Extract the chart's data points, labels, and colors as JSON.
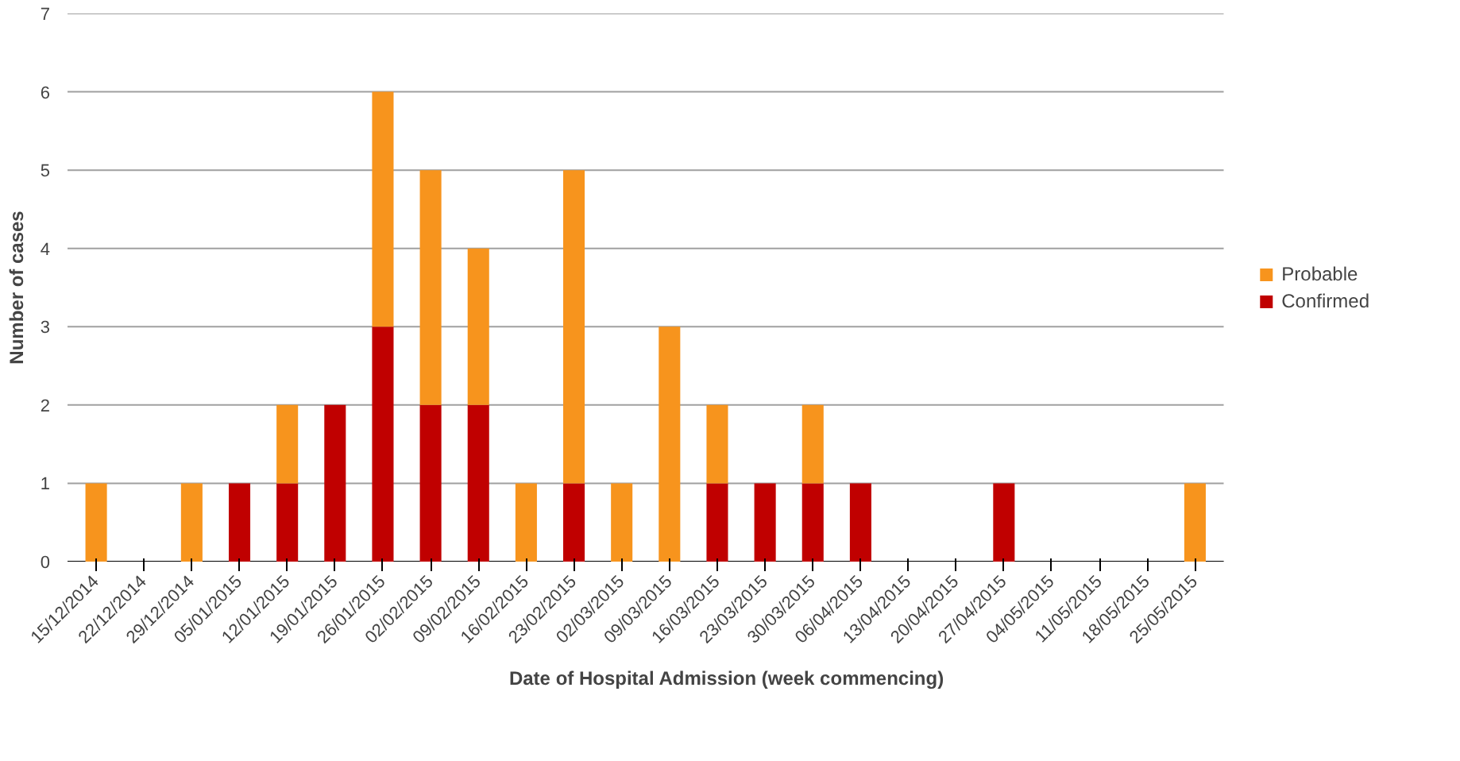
{
  "chart_data": {
    "type": "bar",
    "stacked": true,
    "xlabel": "Date of Hospital Admission (week commencing)",
    "ylabel": "Number of cases",
    "categories": [
      "15/12/2014",
      "22/12/2014",
      "29/12/2014",
      "05/01/2015",
      "12/01/2015",
      "19/01/2015",
      "26/01/2015",
      "02/02/2015",
      "09/02/2015",
      "16/02/2015",
      "23/02/2015",
      "02/03/2015",
      "09/03/2015",
      "16/03/2015",
      "23/03/2015",
      "30/03/2015",
      "06/04/2015",
      "13/04/2015",
      "20/04/2015",
      "27/04/2015",
      "04/05/2015",
      "11/05/2015",
      "18/05/2015",
      "25/05/2015"
    ],
    "series": [
      {
        "name": "Confirmed",
        "color": "#c00000",
        "values": [
          0,
          0,
          0,
          1,
          1,
          2,
          3,
          2,
          2,
          0,
          1,
          0,
          0,
          1,
          1,
          1,
          1,
          0,
          0,
          1,
          0,
          0,
          0,
          0
        ]
      },
      {
        "name": "Probable",
        "color": "#f7941d",
        "values": [
          1,
          0,
          1,
          0,
          1,
          0,
          3,
          3,
          2,
          1,
          4,
          1,
          3,
          1,
          0,
          1,
          0,
          0,
          0,
          0,
          0,
          0,
          0,
          1
        ]
      }
    ],
    "ylim": [
      0,
      7
    ],
    "yticks": [
      0,
      1,
      2,
      3,
      4,
      5,
      6,
      7
    ],
    "grid": "y",
    "legend": "right"
  }
}
